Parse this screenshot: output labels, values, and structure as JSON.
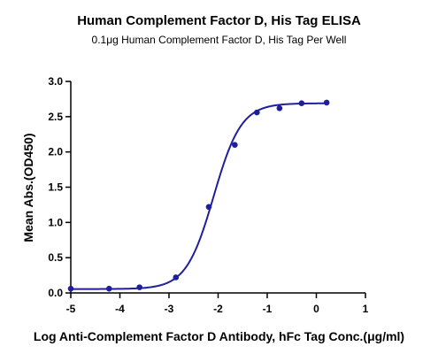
{
  "chart_data": {
    "type": "scatter",
    "title": "Human Complement Factor D, His Tag ELISA",
    "subtitle": "0.1μg Human Complement Factor D, His Tag Per Well",
    "xlabel": "Log Anti-Complement Factor D  Antibody, hFc Tag Conc.(μg/ml)",
    "ylabel": "Mean Abs.(OD450)",
    "xlim": [
      -5,
      1
    ],
    "ylim": [
      0,
      3.0
    ],
    "xticks": [
      "-5",
      "-4",
      "-3",
      "-2",
      "-1",
      "0",
      "1"
    ],
    "yticks": [
      "0.0",
      "0.5",
      "1.0",
      "1.5",
      "2.0",
      "2.5",
      "3.0"
    ],
    "grid": false,
    "colors": {
      "series": "#1f1f9e",
      "axis": "#000000"
    },
    "series": [
      {
        "points": [
          {
            "x": -5.0,
            "y": 0.06
          },
          {
            "x": -4.22,
            "y": 0.06
          },
          {
            "x": -3.6,
            "y": 0.08
          },
          {
            "x": -2.86,
            "y": 0.22
          },
          {
            "x": -2.19,
            "y": 1.22
          },
          {
            "x": -1.66,
            "y": 2.1
          },
          {
            "x": -1.21,
            "y": 2.56
          },
          {
            "x": -0.75,
            "y": 2.62
          },
          {
            "x": -0.3,
            "y": 2.69
          },
          {
            "x": 0.21,
            "y": 2.7
          }
        ],
        "fit": {
          "model": "4PL",
          "bottom": 0.055,
          "top": 2.69,
          "logEC50": -2.09,
          "hillslope": 1.55
        }
      }
    ]
  }
}
